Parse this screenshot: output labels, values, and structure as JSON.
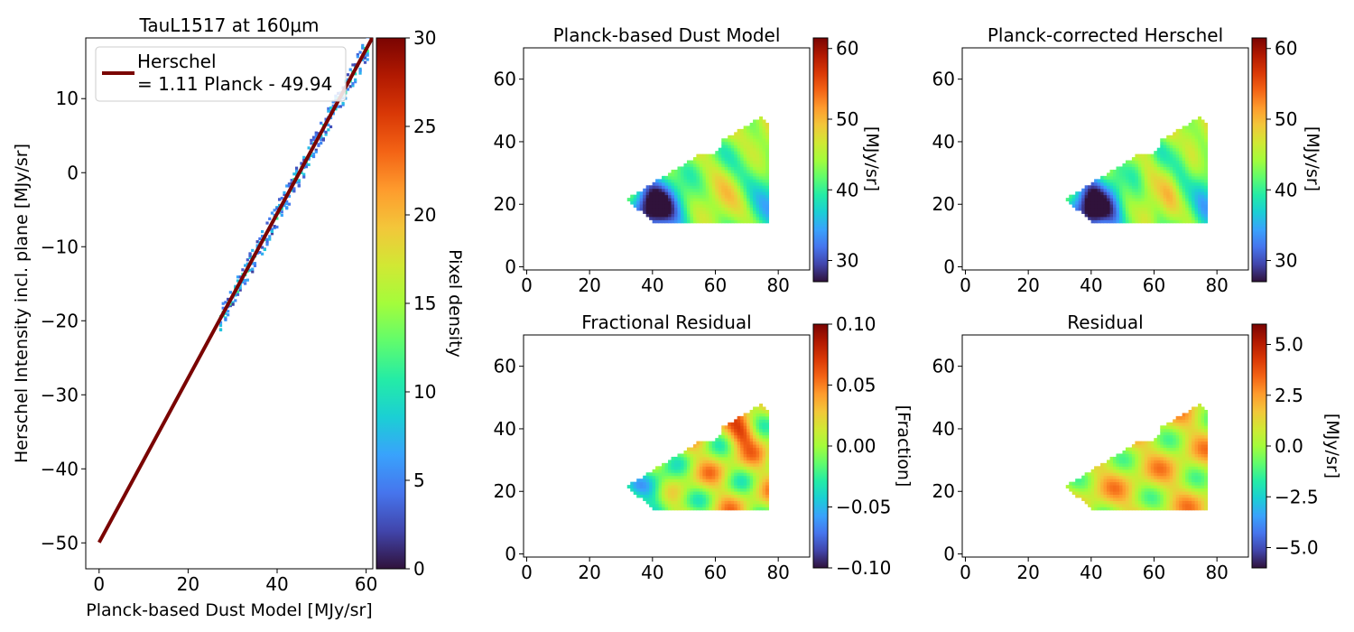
{
  "colormap": [
    "#30123b",
    "#4145ab",
    "#4675ed",
    "#39a2fc",
    "#1bcfd4",
    "#24eca6",
    "#61fc6c",
    "#a4fc3b",
    "#d1e834",
    "#f3c63a",
    "#fe9b2d",
    "#f36315",
    "#d93806",
    "#b11901",
    "#7a0402"
  ],
  "chart_data": [
    {
      "id": "scatter",
      "type": "heatmap",
      "title": "TauL1517 at 160μm",
      "xlabel": "Planck-based Dust Model [MJy/sr]",
      "ylabel": "Herschel Intensity incl. plane [MJy/sr]",
      "xlim": [
        -3,
        61.5
      ],
      "ylim": [
        -53.5,
        18.2
      ],
      "xticks": [
        0,
        20,
        40,
        60
      ],
      "yticks": [
        -50,
        -40,
        -30,
        -20,
        -10,
        0,
        10
      ],
      "xticklabels": [
        "0",
        "20",
        "40",
        "60"
      ],
      "yticklabels": [
        "−50",
        "−40",
        "−30",
        "−20",
        "−10",
        "0",
        "10"
      ],
      "fit": {
        "slope": 1.11,
        "intercept": -49.94,
        "color": "#7a0402"
      },
      "legend": {
        "placement": "upper-left",
        "line1": "Herschel",
        "line2": "= 1.11 Planck - 49.94"
      },
      "density_range": [
        27,
        60
      ],
      "colorbar": {
        "label": "Pixel density",
        "range": [
          0,
          30
        ],
        "ticks": [
          0,
          5,
          10,
          15,
          20,
          25,
          30
        ],
        "ticklabels": [
          "0",
          "5",
          "10",
          "15",
          "20",
          "25",
          "30"
        ]
      }
    },
    {
      "id": "model",
      "type": "heatmap",
      "title": "Planck-based Dust Model",
      "xlim": [
        -1,
        90
      ],
      "ylim": [
        -1,
        70
      ],
      "xticks": [
        0,
        20,
        40,
        60,
        80
      ],
      "yticks": [
        0,
        20,
        40,
        60
      ],
      "xticklabels": [
        "0",
        "20",
        "40",
        "60",
        "80"
      ],
      "yticklabels": [
        "0",
        "20",
        "40",
        "60"
      ],
      "colorbar": {
        "label": "[MJy/sr]",
        "range": [
          27,
          61.5
        ],
        "ticks": [
          30,
          40,
          50,
          60
        ],
        "ticklabels": [
          "30",
          "40",
          "50",
          "60"
        ]
      }
    },
    {
      "id": "corrected",
      "type": "heatmap",
      "title": "Planck-corrected Herschel",
      "xlim": [
        -1,
        90
      ],
      "ylim": [
        -1,
        70
      ],
      "xticks": [
        0,
        20,
        40,
        60,
        80
      ],
      "yticks": [
        0,
        20,
        40,
        60
      ],
      "xticklabels": [
        "0",
        "20",
        "40",
        "60",
        "80"
      ],
      "yticklabels": [
        "0",
        "20",
        "40",
        "60"
      ],
      "colorbar": {
        "label": "[MJy/sr]",
        "range": [
          27,
          61.5
        ],
        "ticks": [
          30,
          40,
          50,
          60
        ],
        "ticklabels": [
          "30",
          "40",
          "50",
          "60"
        ]
      }
    },
    {
      "id": "fracres",
      "type": "heatmap",
      "title": "Fractional Residual",
      "xlim": [
        -1,
        90
      ],
      "ylim": [
        -1,
        70
      ],
      "xticks": [
        0,
        20,
        40,
        60,
        80
      ],
      "yticks": [
        0,
        20,
        40,
        60
      ],
      "xticklabels": [
        "0",
        "20",
        "40",
        "60",
        "80"
      ],
      "yticklabels": [
        "0",
        "20",
        "40",
        "60"
      ],
      "colorbar": {
        "label": "[Fraction]",
        "range": [
          -0.1,
          0.1
        ],
        "ticks": [
          -0.1,
          -0.05,
          0,
          0.05,
          0.1
        ],
        "ticklabels": [
          "−0.10",
          "−0.05",
          "0.00",
          "0.05",
          "0.10"
        ]
      }
    },
    {
      "id": "residual",
      "type": "heatmap",
      "title": "Residual",
      "xlim": [
        -1,
        90
      ],
      "ylim": [
        -1,
        70
      ],
      "xticks": [
        0,
        20,
        40,
        60,
        80
      ],
      "yticks": [
        0,
        20,
        40,
        60
      ],
      "xticklabels": [
        "0",
        "20",
        "40",
        "60",
        "80"
      ],
      "yticklabels": [
        "0",
        "20",
        "40",
        "60"
      ],
      "colorbar": {
        "label": "[MJy/sr]",
        "range": [
          -6,
          6
        ],
        "ticks": [
          -5,
          -2.5,
          0,
          2.5,
          5
        ],
        "ticklabels": [
          "−5.0",
          "−2.5",
          "0.0",
          "2.5",
          "5.0"
        ]
      }
    }
  ]
}
